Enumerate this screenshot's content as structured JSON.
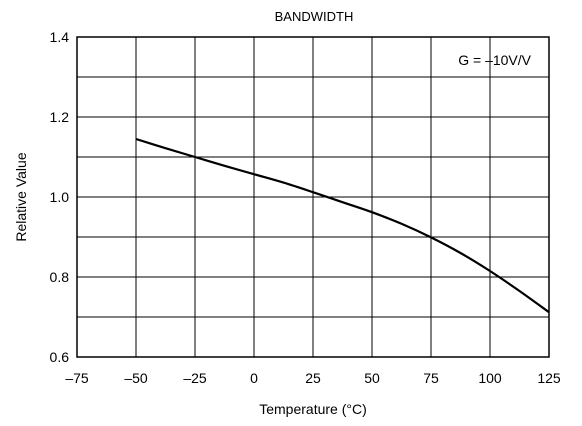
{
  "chart_data": {
    "type": "line",
    "title": "BANDWIDTH",
    "xlabel": "Temperature (°C)",
    "ylabel": "Relative Value",
    "xlim": [
      -75,
      125
    ],
    "ylim": [
      0.6,
      1.4
    ],
    "x_ticks": [
      -75,
      -50,
      -25,
      0,
      25,
      50,
      75,
      100,
      125
    ],
    "x_tick_labels": [
      "–75",
      "–50",
      "–25",
      "0",
      "25",
      "50",
      "75",
      "100",
      "125"
    ],
    "y_ticks": [
      0.6,
      0.8,
      1.0,
      1.2,
      1.4
    ],
    "y_tick_labels": [
      "0.6",
      "0.8",
      "1.0",
      "1.2",
      "1.4"
    ],
    "x_gridlines": [
      -75,
      -50,
      -25,
      0,
      25,
      50,
      75,
      100,
      125
    ],
    "y_gridlines": [
      0.6,
      0.7,
      0.8,
      0.9,
      1.0,
      1.1,
      1.2,
      1.3,
      1.4
    ],
    "grid": true,
    "annotation": "G = –10V/V",
    "annotation_position": "top-right",
    "series": [
      {
        "x": [
          -50,
          -37.5,
          -25,
          -12.5,
          0,
          12.5,
          25,
          37.5,
          50,
          62.5,
          75,
          87.5,
          100,
          112.5,
          125
        ],
        "values": [
          1.145,
          1.122,
          1.1,
          1.078,
          1.057,
          1.036,
          1.012,
          0.987,
          0.962,
          0.933,
          0.899,
          0.86,
          0.815,
          0.765,
          0.712
        ],
        "color": "#000000"
      }
    ]
  }
}
